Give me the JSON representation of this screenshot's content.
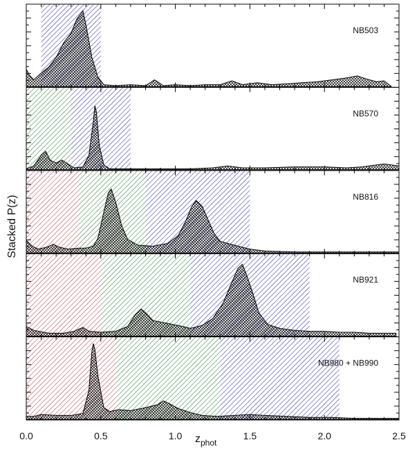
{
  "chart_data": {
    "type": "area",
    "xlabel": "z",
    "xlabel_sub": "phot",
    "ylabel": "Stacked P(z)",
    "xlim": [
      0.0,
      2.5
    ],
    "xticks": [
      "0.0",
      "0.5",
      "1.0",
      "1.5",
      "2.0",
      "2.5"
    ],
    "colors": {
      "red": "#b0404a",
      "green": "#2e7d32",
      "blue": "#2a2aa0",
      "curve": "#000000"
    },
    "panels": [
      {
        "label": "NB503",
        "bands": [
          {
            "color": "blue",
            "range": [
              0.1,
              0.5
            ]
          }
        ],
        "curve": [
          [
            0.0,
            0.18
          ],
          [
            0.02,
            0.12
          ],
          [
            0.05,
            0.07
          ],
          [
            0.1,
            0.14
          ],
          [
            0.15,
            0.2
          ],
          [
            0.2,
            0.3
          ],
          [
            0.25,
            0.45
          ],
          [
            0.3,
            0.55
          ],
          [
            0.34,
            0.7
          ],
          [
            0.38,
            0.78
          ],
          [
            0.4,
            0.64
          ],
          [
            0.44,
            0.3
          ],
          [
            0.48,
            0.1
          ],
          [
            0.52,
            0.02
          ],
          [
            0.6,
            0.01
          ],
          [
            0.7,
            0.02
          ],
          [
            0.8,
            0.01
          ],
          [
            0.86,
            0.07
          ],
          [
            0.92,
            0.01
          ],
          [
            1.0,
            0.02
          ],
          [
            1.1,
            0.01
          ],
          [
            1.2,
            0.02
          ],
          [
            1.3,
            0.02
          ],
          [
            1.38,
            0.06
          ],
          [
            1.45,
            0.02
          ],
          [
            1.55,
            0.04
          ],
          [
            1.65,
            0.02
          ],
          [
            1.75,
            0.03
          ],
          [
            1.85,
            0.04
          ],
          [
            1.95,
            0.05
          ],
          [
            2.05,
            0.07
          ],
          [
            2.15,
            0.09
          ],
          [
            2.22,
            0.11
          ],
          [
            2.28,
            0.08
          ],
          [
            2.35,
            0.05
          ],
          [
            2.4,
            0.06
          ],
          [
            2.45,
            0.0
          ]
        ]
      },
      {
        "label": "NB570",
        "bands": [
          {
            "color": "green",
            "range": [
              0.0,
              0.3
            ]
          },
          {
            "color": "blue",
            "range": [
              0.3,
              0.7
            ]
          }
        ],
        "curve": [
          [
            0.0,
            0.01
          ],
          [
            0.05,
            0.04
          ],
          [
            0.1,
            0.15
          ],
          [
            0.13,
            0.19
          ],
          [
            0.16,
            0.1
          ],
          [
            0.2,
            0.07
          ],
          [
            0.24,
            0.1
          ],
          [
            0.28,
            0.06
          ],
          [
            0.32,
            0.02
          ],
          [
            0.38,
            0.03
          ],
          [
            0.42,
            0.15
          ],
          [
            0.45,
            0.5
          ],
          [
            0.46,
            0.66
          ],
          [
            0.47,
            0.6
          ],
          [
            0.49,
            0.25
          ],
          [
            0.52,
            0.05
          ],
          [
            0.56,
            0.01
          ],
          [
            0.7,
            0.01
          ],
          [
            0.9,
            0.01
          ],
          [
            1.1,
            0.01
          ],
          [
            1.25,
            0.02
          ],
          [
            1.35,
            0.04
          ],
          [
            1.45,
            0.02
          ],
          [
            1.6,
            0.02
          ],
          [
            1.8,
            0.03
          ],
          [
            2.0,
            0.03
          ],
          [
            2.15,
            0.02
          ],
          [
            2.25,
            0.03
          ],
          [
            2.35,
            0.05
          ],
          [
            2.4,
            0.06
          ],
          [
            2.45,
            0.05
          ],
          [
            2.5,
            0.04
          ]
        ]
      },
      {
        "label": "NB816",
        "bands": [
          {
            "color": "red",
            "range": [
              0.0,
              0.35
            ]
          },
          {
            "color": "green",
            "range": [
              0.35,
              0.8
            ]
          },
          {
            "color": "blue",
            "range": [
              0.8,
              1.5
            ]
          }
        ],
        "curve": [
          [
            0.0,
            0.13
          ],
          [
            0.04,
            0.07
          ],
          [
            0.08,
            0.04
          ],
          [
            0.14,
            0.06
          ],
          [
            0.18,
            0.09
          ],
          [
            0.22,
            0.06
          ],
          [
            0.28,
            0.04
          ],
          [
            0.35,
            0.05
          ],
          [
            0.4,
            0.05
          ],
          [
            0.45,
            0.07
          ],
          [
            0.48,
            0.15
          ],
          [
            0.52,
            0.42
          ],
          [
            0.55,
            0.62
          ],
          [
            0.57,
            0.66
          ],
          [
            0.6,
            0.52
          ],
          [
            0.64,
            0.28
          ],
          [
            0.68,
            0.14
          ],
          [
            0.75,
            0.08
          ],
          [
            0.85,
            0.07
          ],
          [
            0.95,
            0.1
          ],
          [
            1.02,
            0.18
          ],
          [
            1.07,
            0.33
          ],
          [
            1.11,
            0.48
          ],
          [
            1.14,
            0.54
          ],
          [
            1.18,
            0.48
          ],
          [
            1.22,
            0.34
          ],
          [
            1.26,
            0.2
          ],
          [
            1.3,
            0.12
          ],
          [
            1.35,
            0.1
          ],
          [
            1.42,
            0.07
          ],
          [
            1.5,
            0.04
          ],
          [
            1.6,
            0.02
          ],
          [
            1.8,
            0.01
          ],
          [
            2.0,
            0.01
          ],
          [
            2.3,
            0.01
          ],
          [
            2.5,
            0.01
          ]
        ]
      },
      {
        "label": "NB921",
        "bands": [
          {
            "color": "red",
            "range": [
              0.0,
              0.5
            ]
          },
          {
            "color": "green",
            "range": [
              0.5,
              1.1
            ]
          },
          {
            "color": "blue",
            "range": [
              1.1,
              1.9
            ]
          }
        ],
        "curve": [
          [
            0.0,
            0.1
          ],
          [
            0.05,
            0.06
          ],
          [
            0.15,
            0.03
          ],
          [
            0.25,
            0.03
          ],
          [
            0.32,
            0.05
          ],
          [
            0.38,
            0.09
          ],
          [
            0.42,
            0.05
          ],
          [
            0.5,
            0.04
          ],
          [
            0.6,
            0.05
          ],
          [
            0.68,
            0.1
          ],
          [
            0.73,
            0.22
          ],
          [
            0.77,
            0.28
          ],
          [
            0.8,
            0.24
          ],
          [
            0.85,
            0.16
          ],
          [
            0.95,
            0.13
          ],
          [
            1.05,
            0.1
          ],
          [
            1.1,
            0.08
          ],
          [
            1.18,
            0.11
          ],
          [
            1.25,
            0.18
          ],
          [
            1.32,
            0.34
          ],
          [
            1.38,
            0.56
          ],
          [
            1.42,
            0.7
          ],
          [
            1.45,
            0.74
          ],
          [
            1.48,
            0.62
          ],
          [
            1.52,
            0.44
          ],
          [
            1.56,
            0.24
          ],
          [
            1.62,
            0.12
          ],
          [
            1.7,
            0.08
          ],
          [
            1.8,
            0.06
          ],
          [
            1.9,
            0.05
          ],
          [
            2.0,
            0.05
          ],
          [
            2.1,
            0.04
          ],
          [
            2.2,
            0.04
          ],
          [
            2.3,
            0.03
          ],
          [
            2.4,
            0.03
          ],
          [
            2.48,
            0.03
          ]
        ]
      },
      {
        "label": "NB980 + NB990",
        "bands": [
          {
            "color": "red",
            "range": [
              0.0,
              0.6
            ]
          },
          {
            "color": "green",
            "range": [
              0.6,
              1.3
            ]
          },
          {
            "color": "blue",
            "range": [
              1.3,
              2.1
            ]
          }
        ],
        "curve": [
          [
            0.0,
            0.03
          ],
          [
            0.05,
            0.03
          ],
          [
            0.1,
            0.05
          ],
          [
            0.2,
            0.04
          ],
          [
            0.3,
            0.04
          ],
          [
            0.38,
            0.06
          ],
          [
            0.42,
            0.3
          ],
          [
            0.44,
            0.7
          ],
          [
            0.45,
            0.78
          ],
          [
            0.46,
            0.72
          ],
          [
            0.48,
            0.45
          ],
          [
            0.52,
            0.12
          ],
          [
            0.56,
            0.08
          ],
          [
            0.62,
            0.1
          ],
          [
            0.7,
            0.09
          ],
          [
            0.8,
            0.12
          ],
          [
            0.88,
            0.15
          ],
          [
            0.92,
            0.19
          ],
          [
            0.96,
            0.16
          ],
          [
            1.02,
            0.11
          ],
          [
            1.1,
            0.07
          ],
          [
            1.18,
            0.04
          ],
          [
            1.28,
            0.03
          ],
          [
            1.4,
            0.04
          ],
          [
            1.5,
            0.05
          ],
          [
            1.6,
            0.04
          ],
          [
            1.75,
            0.03
          ],
          [
            1.9,
            0.02
          ],
          [
            2.05,
            0.02
          ],
          [
            2.2,
            0.01
          ],
          [
            2.35,
            0.01
          ],
          [
            2.5,
            0.01
          ]
        ]
      }
    ]
  }
}
